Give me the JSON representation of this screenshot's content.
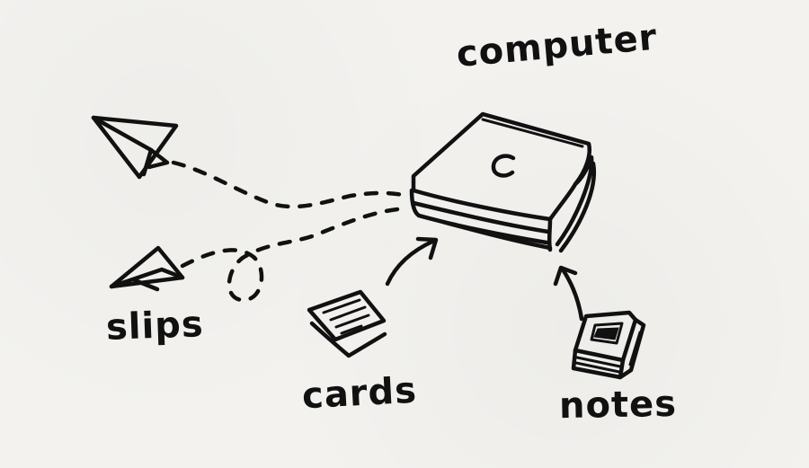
{
  "labels": {
    "computer": "computer",
    "slips": "slips",
    "cards": "cards",
    "notes": "notes",
    "computer_glyph": "c"
  },
  "icons": {
    "computer": "computer-box-icon",
    "slips": "paper-plane-icon",
    "cards": "index-cards-icon",
    "notes": "notebooks-icon",
    "paper_plane_top": "paper-plane-icon"
  },
  "colors": {
    "ink": "#111111",
    "paper": "#f3f2ef"
  }
}
